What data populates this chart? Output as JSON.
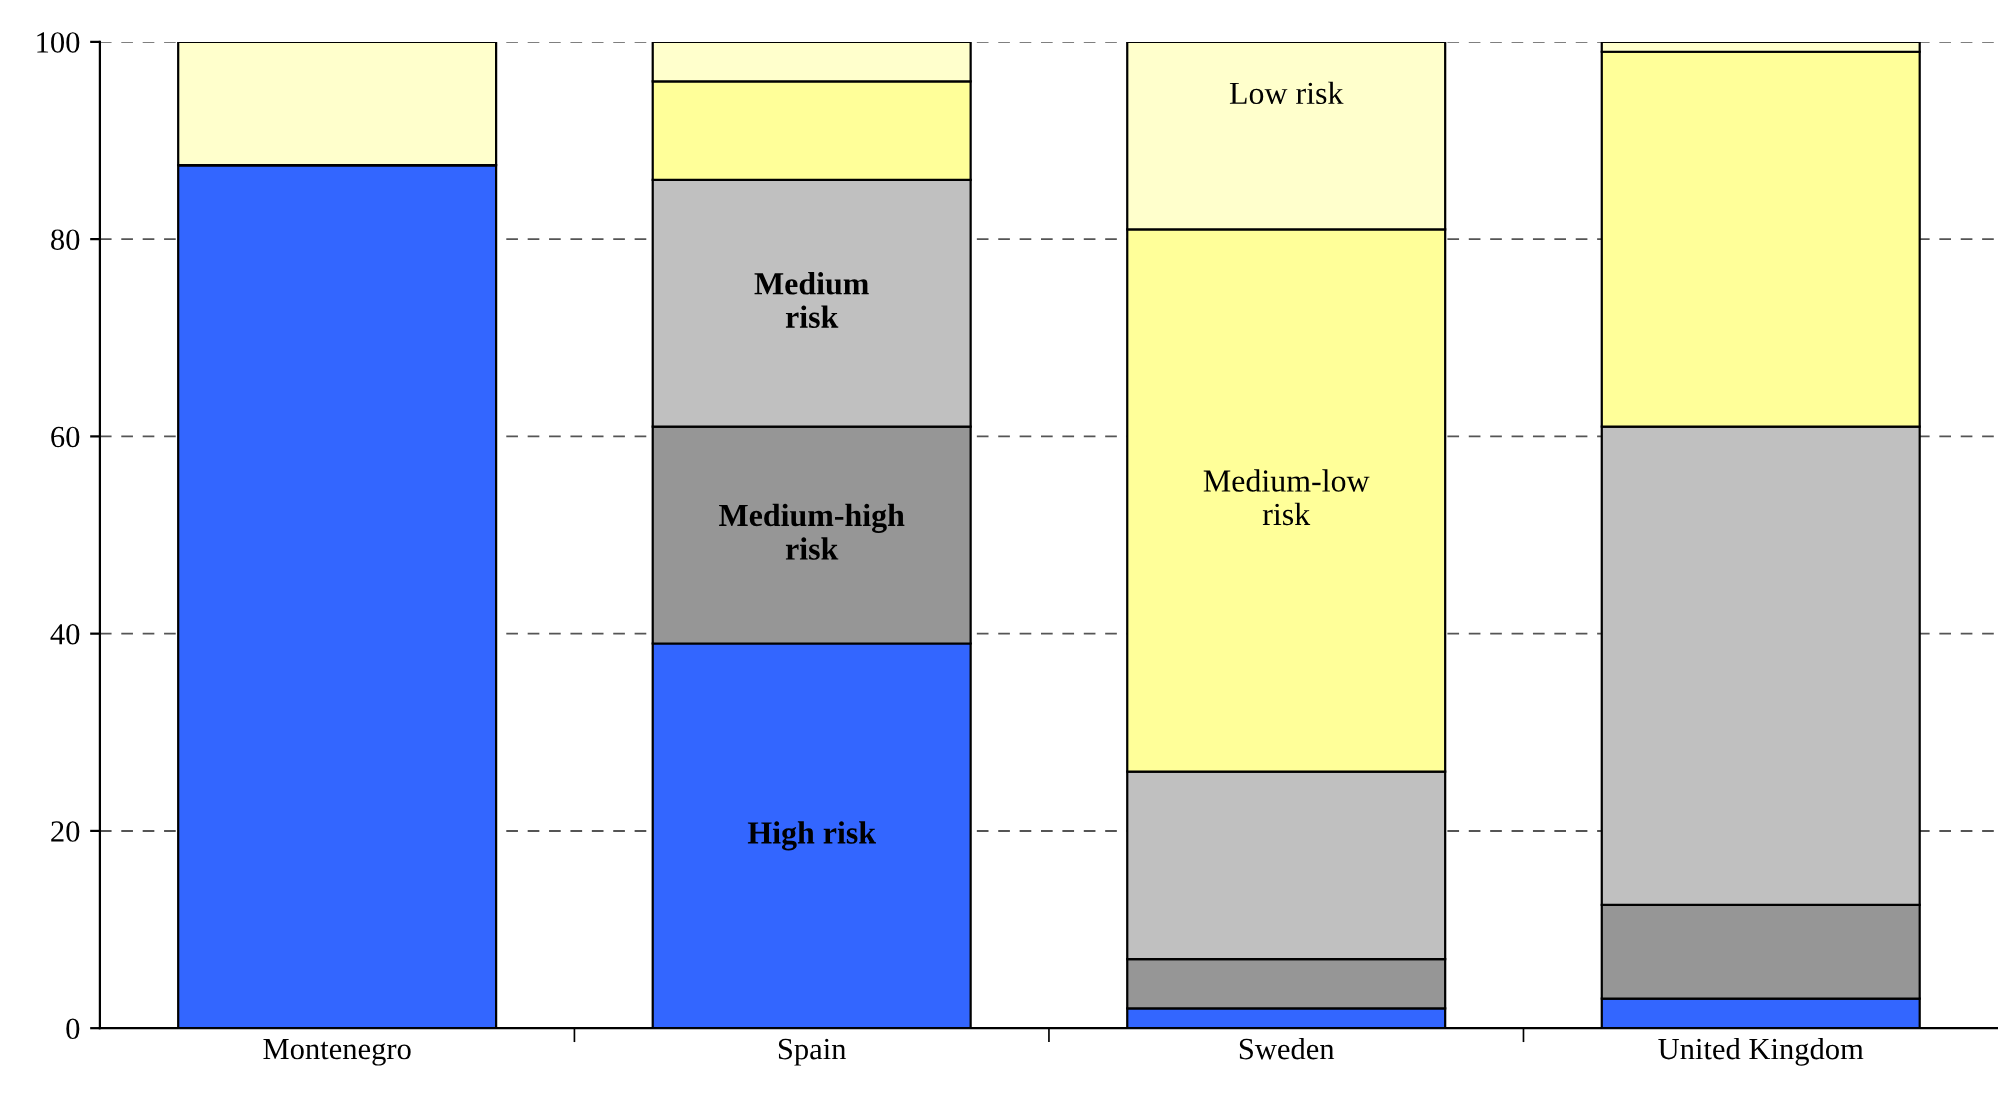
{
  "chart_data": {
    "type": "bar",
    "stacked": true,
    "categories": [
      "Montenegro",
      "Spain",
      "Sweden",
      "United Kingdom"
    ],
    "series": [
      {
        "color": "#3366ff",
        "values": [
          87.5,
          39,
          2,
          3
        ]
      },
      {
        "color": "#969696",
        "values": [
          0,
          22,
          5,
          9.5
        ]
      },
      {
        "color": "#c0c0c0",
        "values": [
          0,
          25,
          19,
          48.5
        ]
      },
      {
        "color": "#ffff99",
        "values": [
          0,
          10,
          55,
          38
        ]
      },
      {
        "color": "#ffffcc",
        "values": [
          12.5,
          4,
          19,
          1
        ]
      }
    ],
    "ylim": [
      0,
      100
    ],
    "yticks": [
      0,
      20,
      40,
      60,
      80,
      100
    ],
    "grid": "y",
    "legend": false,
    "annotations": [
      "High risk",
      "Medium-high\nrisk",
      "Medium\nrisk",
      "Medium-low\nrisk",
      "Low risk"
    ]
  }
}
